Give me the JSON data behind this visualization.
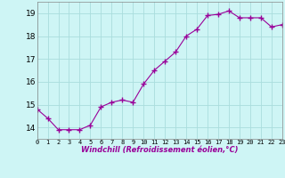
{
  "x": [
    0,
    1,
    2,
    3,
    4,
    5,
    6,
    7,
    8,
    9,
    10,
    11,
    12,
    13,
    14,
    15,
    16,
    17,
    18,
    19,
    20,
    21,
    22,
    23
  ],
  "y": [
    14.8,
    14.4,
    13.9,
    13.9,
    13.9,
    14.1,
    14.9,
    15.1,
    15.2,
    15.1,
    15.9,
    16.5,
    16.9,
    17.3,
    18.0,
    18.3,
    18.9,
    18.95,
    19.1,
    18.8,
    18.8,
    18.8,
    18.4,
    18.5
  ],
  "line_color": "#990099",
  "marker": "+",
  "markersize": 4,
  "markeredgewidth": 1.0,
  "linewidth": 0.8,
  "bg_color": "#cef5f5",
  "grid_color": "#aadddd",
  "xlabel": "Windchill (Refroidissement éolien,°C)",
  "xlim": [
    0,
    23
  ],
  "ylim": [
    13.5,
    19.5
  ],
  "yticks": [
    14,
    15,
    16,
    17,
    18,
    19
  ],
  "xtick_labels": [
    "0",
    "1",
    "2",
    "3",
    "4",
    "5",
    "6",
    "7",
    "8",
    "9",
    "10",
    "11",
    "12",
    "13",
    "14",
    "15",
    "16",
    "17",
    "18",
    "19",
    "20",
    "21",
    "22",
    "23"
  ]
}
